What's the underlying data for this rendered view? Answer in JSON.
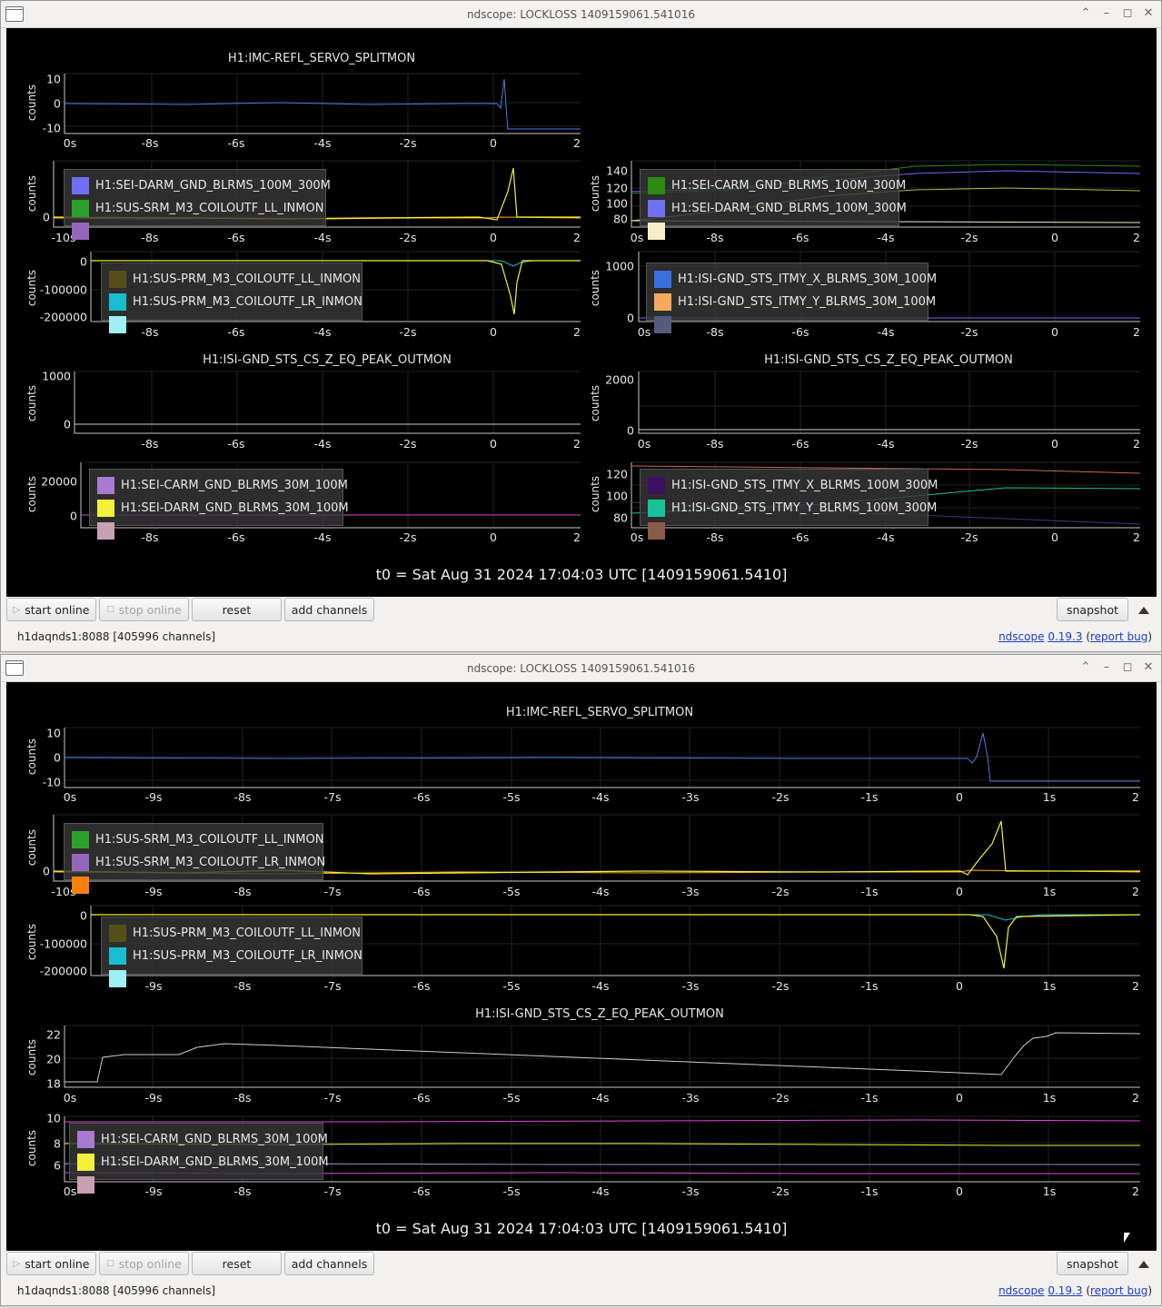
{
  "windows": [
    {
      "title": "ndscope: LOCKLOSS 1409159061.541016",
      "t0": "t0 = Sat Aug 31 2024 17:04:03 UTC [1409159061.5410]",
      "buttons": {
        "start": "start online",
        "stop": "stop online",
        "reset": "reset",
        "add": "add channels",
        "snapshot": "snapshot"
      },
      "status": "h1daqnds1:8088  [405996 channels]",
      "links": {
        "ndscope": "ndscope",
        "version": "0.19.3",
        "bug": "report bug"
      }
    },
    {
      "title": "ndscope: LOCKLOSS 1409159061.541016",
      "t0": "t0 = Sat Aug 31 2024 17:04:03 UTC [1409159061.5410]",
      "buttons": {
        "start": "start online",
        "stop": "stop online",
        "reset": "reset",
        "add": "add channels",
        "snapshot": "snapshot"
      },
      "status": "h1daqnds1:8088  [405996 channels]",
      "links": {
        "ndscope": "ndscope",
        "version": "0.19.3",
        "bug": "report bug"
      }
    }
  ],
  "plots": [
    {
      "title": "H1:IMC-REFL_SERVO_SPLITMON",
      "ylabel": "counts",
      "yticks": [
        "10",
        "0",
        "-10"
      ],
      "xticks": [
        "0s",
        "-8s",
        "-6s",
        "-4s",
        "-2s",
        "0",
        "2"
      ],
      "legend": []
    },
    {
      "title": "",
      "ylabel": "counts",
      "yticks": [
        "0"
      ],
      "xticks": [
        "-10s",
        "-8s",
        "-6s",
        "-4s",
        "-2s",
        "0",
        "2"
      ],
      "legend": [
        {
          "name": "H1:SEI-DARM_GND_BLRMS_100M_300M",
          "color": "#6e6ef7"
        },
        {
          "name": "H1:SUS-SRM_M3_COILOUTF_LL_INMON",
          "color": "#2ca02c"
        },
        {
          "name": "",
          "color": "#9467bd"
        }
      ]
    },
    {
      "title": "",
      "ylabel": "counts",
      "yticks": [
        "140",
        "120",
        "100",
        "80"
      ],
      "xticks": [
        "0s",
        "-8s",
        "-6s",
        "-4s",
        "-2s",
        "0",
        "2"
      ],
      "legend": [
        {
          "name": "H1:SEI-CARM_GND_BLRMS_100M_300M",
          "color": "#2a8a14"
        },
        {
          "name": "H1:SEI-DARM_GND_BLRMS_100M_300M",
          "color": "#7070f5"
        },
        {
          "name": "",
          "color": "#f5f0c8"
        }
      ]
    },
    {
      "title": "",
      "ylabel": "counts",
      "yticks": [
        "0",
        "-100000",
        "-200000"
      ],
      "xticks": [
        "-8s",
        "-6s",
        "-4s",
        "-2s",
        "0",
        "2"
      ],
      "legend": [
        {
          "name": "H1:SUS-PRM_M3_COILOUTF_LL_INMON",
          "color": "#55501a"
        },
        {
          "name": "H1:SUS-PRM_M3_COILOUTF_LR_INMON",
          "color": "#17becf"
        },
        {
          "name": "",
          "color": "#9ef0f5"
        }
      ]
    },
    {
      "title": "",
      "ylabel": "counts",
      "yticks": [
        "1000",
        "0"
      ],
      "xticks": [
        "0s",
        "-8s",
        "-6s",
        "-4s",
        "-2s",
        "0",
        "2"
      ],
      "legend": [
        {
          "name": "H1:ISI-GND_STS_ITMY_X_BLRMS_30M_100M",
          "color": "#3a6fe0"
        },
        {
          "name": "H1:ISI-GND_STS_ITMY_Y_BLRMS_30M_100M",
          "color": "#f5a95f"
        },
        {
          "name": "",
          "color": "#555a80"
        }
      ]
    },
    {
      "title": "H1:ISI-GND_STS_CS_Z_EQ_PEAK_OUTMON",
      "ylabel": "counts",
      "yticks": [
        "1000",
        "0"
      ],
      "xticks": [
        "-8s",
        "-6s",
        "-4s",
        "-2s",
        "0",
        "2"
      ],
      "legend": []
    },
    {
      "title": "H1:ISI-GND_STS_CS_Z_EQ_PEAK_OUTMON",
      "ylabel": "counts",
      "yticks": [
        "2000",
        "0"
      ],
      "xticks": [
        "0s",
        "-8s",
        "-6s",
        "-4s",
        "-2s",
        "0",
        "2"
      ],
      "legend": []
    },
    {
      "title": "",
      "ylabel": "counts",
      "yticks": [
        "20000",
        "0"
      ],
      "xticks": [
        "-8s",
        "-6s",
        "-4s",
        "-2s",
        "0",
        "2"
      ],
      "legend": [
        {
          "name": "H1:SEI-CARM_GND_BLRMS_30M_100M",
          "color": "#a97ad0"
        },
        {
          "name": "H1:SEI-DARM_GND_BLRMS_30M_100M",
          "color": "#f2f23a"
        },
        {
          "name": "",
          "color": "#c8a0b0"
        }
      ]
    },
    {
      "title": "",
      "ylabel": "counts",
      "yticks": [
        "120",
        "100",
        "80"
      ],
      "xticks": [
        "0s",
        "-8s",
        "-6s",
        "-4s",
        "-2s",
        "0",
        "2"
      ],
      "legend": [
        {
          "name": "H1:ISI-GND_STS_ITMY_X_BLRMS_100M_300M",
          "color": "#3c1060"
        },
        {
          "name": "H1:ISI-GND_STS_ITMY_Y_BLRMS_100M_300M",
          "color": "#18c39a"
        },
        {
          "name": "",
          "color": "#8a5a4a"
        }
      ]
    },
    {
      "title": "H1:IMC-REFL_SERVO_SPLITMON",
      "ylabel": "counts",
      "yticks": [
        "10",
        "0",
        "-10"
      ],
      "xticks": [
        "0s",
        "-9s",
        "-8s",
        "-7s",
        "-6s",
        "-5s",
        "-4s",
        "-3s",
        "-2s",
        "-1s",
        "0",
        "1s",
        "2"
      ],
      "legend": []
    },
    {
      "title": "",
      "ylabel": "counts",
      "yticks": [
        "0"
      ],
      "xticks": [
        "-10s",
        "-9s",
        "-8s",
        "-7s",
        "-6s",
        "-5s",
        "-4s",
        "-3s",
        "-2s",
        "-1s",
        "0",
        "1s",
        "2"
      ],
      "legend": [
        {
          "name": "H1:SUS-SRM_M3_COILOUTF_LL_INMON",
          "color": "#2ca02c"
        },
        {
          "name": "H1:SUS-SRM_M3_COILOUTF_LR_INMON",
          "color": "#9467bd"
        },
        {
          "name": "",
          "color": "#ff7f0e"
        }
      ]
    },
    {
      "title": "",
      "ylabel": "counts",
      "yticks": [
        "0",
        "-100000",
        "-200000"
      ],
      "xticks": [
        "-9s",
        "-8s",
        "-7s",
        "-6s",
        "-5s",
        "-4s",
        "-3s",
        "-2s",
        "-1s",
        "0",
        "1s",
        "2"
      ],
      "legend": [
        {
          "name": "H1:SUS-PRM_M3_COILOUTF_LL_INMON",
          "color": "#55501a"
        },
        {
          "name": "H1:SUS-PRM_M3_COILOUTF_LR_INMON",
          "color": "#17becf"
        },
        {
          "name": "",
          "color": "#9ef0f5"
        }
      ]
    },
    {
      "title": "H1:ISI-GND_STS_CS_Z_EQ_PEAK_OUTMON",
      "ylabel": "counts",
      "yticks": [
        "22",
        "20",
        "18"
      ],
      "xticks": [
        "0s",
        "-9s",
        "-8s",
        "-7s",
        "-6s",
        "-5s",
        "-4s",
        "-3s",
        "-2s",
        "-1s",
        "0",
        "1s",
        "2"
      ],
      "legend": []
    },
    {
      "title": "",
      "ylabel": "counts",
      "yticks": [
        "10",
        "8",
        "6"
      ],
      "xticks": [
        "0s",
        "-9s",
        "-8s",
        "-7s",
        "-6s",
        "-5s",
        "-4s",
        "-3s",
        "-2s",
        "-1s",
        "0",
        "1s",
        "2"
      ],
      "legend": [
        {
          "name": "H1:SEI-CARM_GND_BLRMS_30M_100M",
          "color": "#a97ad0"
        },
        {
          "name": "H1:SEI-DARM_GND_BLRMS_30M_100M",
          "color": "#f2f23a"
        },
        {
          "name": "",
          "color": "#c8a0b0"
        }
      ]
    }
  ]
}
